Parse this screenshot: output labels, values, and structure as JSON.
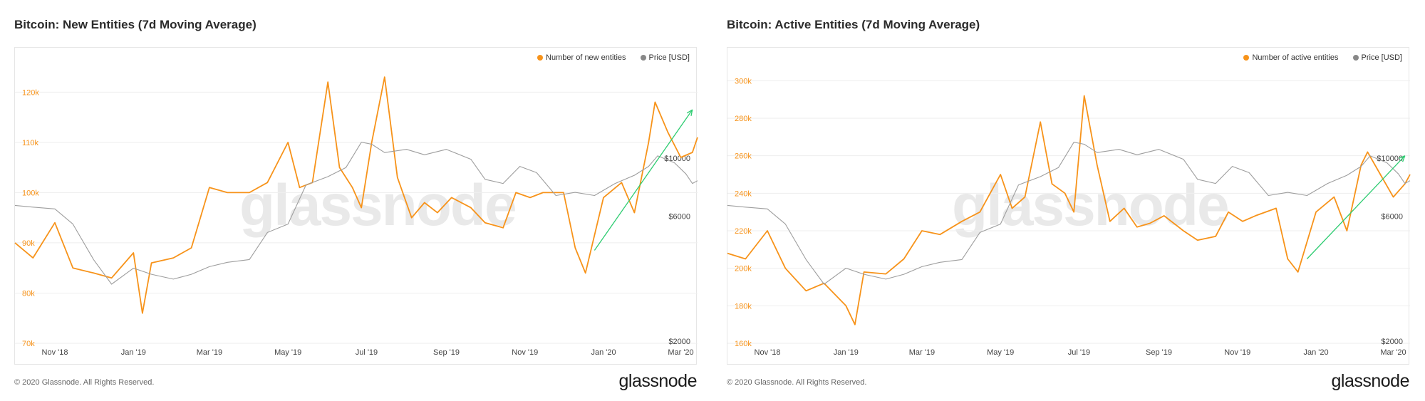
{
  "colors": {
    "entities": "#f7931a",
    "price": "#9e9e9e",
    "trend": "#2ecc71",
    "grid": "#eeeeee"
  },
  "footer": {
    "copyright": "© 2020 Glassnode. All Rights Reserved.",
    "logo": "glassnode",
    "watermark": "glassnode"
  },
  "chart_data": [
    {
      "type": "line",
      "title": "Bitcoin: New Entities (7d Moving Average)",
      "legend": [
        "Number of new entities",
        "Price [USD]"
      ],
      "legend_position": "top-right",
      "grid": true,
      "x_range": [
        "2018-10-01",
        "2020-03-14"
      ],
      "x_ticks": [
        "Nov '18",
        "Jan '19",
        "Mar '19",
        "May '19",
        "Jul '19",
        "Sep '19",
        "Nov '19",
        "Jan '20",
        "Mar '20"
      ],
      "y_left": {
        "ticks": [
          70000,
          80000,
          90000,
          100000,
          110000,
          120000
        ],
        "labels": [
          "70k",
          "80k",
          "90k",
          "100k",
          "110k",
          "120k"
        ],
        "range": [
          70000,
          126000
        ]
      },
      "y_right": {
        "labels": [
          "$2000",
          "$6000",
          "$10000"
        ],
        "scale": "log"
      },
      "series": [
        {
          "name": "Number of new entities",
          "axis": "left",
          "x": [
            "2018-10-01",
            "2018-10-15",
            "2018-11-01",
            "2018-11-15",
            "2018-12-01",
            "2018-12-15",
            "2019-01-01",
            "2019-01-08",
            "2019-01-15",
            "2019-02-01",
            "2019-02-15",
            "2019-03-01",
            "2019-03-15",
            "2019-04-01",
            "2019-04-15",
            "2019-05-01",
            "2019-05-10",
            "2019-05-20",
            "2019-06-01",
            "2019-06-10",
            "2019-06-20",
            "2019-06-27",
            "2019-07-05",
            "2019-07-15",
            "2019-07-25",
            "2019-08-05",
            "2019-08-15",
            "2019-08-25",
            "2019-09-05",
            "2019-09-20",
            "2019-10-01",
            "2019-10-15",
            "2019-10-25",
            "2019-11-05",
            "2019-11-15",
            "2019-12-01",
            "2019-12-10",
            "2019-12-18",
            "2020-01-01",
            "2020-01-15",
            "2020-01-25",
            "2020-02-05",
            "2020-02-10",
            "2020-02-20",
            "2020-03-01",
            "2020-03-10",
            "2020-03-14"
          ],
          "values": [
            90000,
            87000,
            94000,
            85000,
            84000,
            83000,
            88000,
            76000,
            86000,
            87000,
            89000,
            101000,
            100000,
            100000,
            102000,
            110000,
            101000,
            102000,
            122000,
            105000,
            101000,
            97000,
            110000,
            123000,
            103000,
            95000,
            98000,
            96000,
            99000,
            97000,
            94000,
            93000,
            100000,
            99000,
            100000,
            100000,
            89000,
            84000,
            99000,
            102000,
            96000,
            110000,
            118000,
            112000,
            107000,
            108000,
            111000
          ]
        },
        {
          "name": "Price [USD]",
          "axis": "right",
          "x": [
            "2018-10-01",
            "2018-10-15",
            "2018-11-01",
            "2018-11-15",
            "2018-12-01",
            "2018-12-15",
            "2019-01-01",
            "2019-01-15",
            "2019-02-01",
            "2019-02-15",
            "2019-03-01",
            "2019-03-15",
            "2019-04-01",
            "2019-04-15",
            "2019-05-01",
            "2019-05-15",
            "2019-06-01",
            "2019-06-15",
            "2019-06-27",
            "2019-07-05",
            "2019-07-15",
            "2019-08-01",
            "2019-08-15",
            "2019-09-01",
            "2019-09-20",
            "2019-10-01",
            "2019-10-15",
            "2019-10-28",
            "2019-11-10",
            "2019-11-25",
            "2019-12-10",
            "2019-12-25",
            "2020-01-10",
            "2020-01-25",
            "2020-02-05",
            "2020-02-12",
            "2020-02-25",
            "2020-03-05",
            "2020-03-10",
            "2020-03-14"
          ],
          "values": [
            6600,
            6500,
            6400,
            5600,
            4100,
            3300,
            3800,
            3600,
            3450,
            3600,
            3850,
            4000,
            4100,
            5200,
            5600,
            7900,
            8500,
            9200,
            11500,
            11300,
            10500,
            10800,
            10300,
            10800,
            9900,
            8300,
            8000,
            9300,
            8800,
            7200,
            7400,
            7200,
            8000,
            8600,
            9300,
            10200,
            9600,
            8700,
            8000,
            8200
          ]
        },
        {
          "name": "trend-arrow",
          "axis": "left",
          "x": [
            "2019-12-25",
            "2020-03-10"
          ],
          "values": [
            88500,
            116500
          ]
        }
      ]
    },
    {
      "type": "line",
      "title": "Bitcoin: Active Entities (7d Moving Average)",
      "legend": [
        "Number of active entities",
        "Price [USD]"
      ],
      "legend_position": "top-right",
      "grid": true,
      "x_range": [
        "2018-10-01",
        "2020-03-14"
      ],
      "x_ticks": [
        "Nov '18",
        "Jan '19",
        "Mar '19",
        "May '19",
        "Jul '19",
        "Sep '19",
        "Nov '19",
        "Jan '20",
        "Mar '20"
      ],
      "y_left": {
        "ticks": [
          160000,
          180000,
          200000,
          220000,
          240000,
          260000,
          280000,
          300000
        ],
        "labels": [
          "160k",
          "180k",
          "200k",
          "220k",
          "240k",
          "260k",
          "280k",
          "300k"
        ],
        "range": [
          160000,
          310000
        ]
      },
      "y_right": {
        "labels": [
          "$2000",
          "$6000",
          "$10000"
        ],
        "scale": "log"
      },
      "series": [
        {
          "name": "Number of active entities",
          "axis": "left",
          "x": [
            "2018-10-01",
            "2018-10-15",
            "2018-11-01",
            "2018-11-15",
            "2018-12-01",
            "2018-12-15",
            "2019-01-01",
            "2019-01-08",
            "2019-01-15",
            "2019-02-01",
            "2019-02-15",
            "2019-03-01",
            "2019-03-15",
            "2019-04-01",
            "2019-04-15",
            "2019-05-01",
            "2019-05-10",
            "2019-05-20",
            "2019-06-01",
            "2019-06-10",
            "2019-06-20",
            "2019-06-27",
            "2019-07-05",
            "2019-07-15",
            "2019-07-25",
            "2019-08-05",
            "2019-08-15",
            "2019-08-25",
            "2019-09-05",
            "2019-09-20",
            "2019-10-01",
            "2019-10-15",
            "2019-10-25",
            "2019-11-05",
            "2019-11-15",
            "2019-12-01",
            "2019-12-10",
            "2019-12-18",
            "2020-01-01",
            "2020-01-15",
            "2020-01-25",
            "2020-02-05",
            "2020-02-10",
            "2020-02-20",
            "2020-03-01",
            "2020-03-10",
            "2020-03-14"
          ],
          "values": [
            208000,
            205000,
            220000,
            200000,
            188000,
            192000,
            180000,
            170000,
            198000,
            197000,
            205000,
            220000,
            218000,
            225000,
            230000,
            250000,
            232000,
            238000,
            278000,
            245000,
            240000,
            230000,
            292000,
            255000,
            225000,
            232000,
            222000,
            224000,
            228000,
            220000,
            215000,
            217000,
            230000,
            225000,
            228000,
            232000,
            205000,
            198000,
            230000,
            238000,
            220000,
            255000,
            262000,
            250000,
            238000,
            245000,
            250000
          ]
        },
        {
          "name": "Price [USD]",
          "axis": "right",
          "x": [
            "2018-10-01",
            "2018-10-15",
            "2018-11-01",
            "2018-11-15",
            "2018-12-01",
            "2018-12-15",
            "2019-01-01",
            "2019-01-15",
            "2019-02-01",
            "2019-02-15",
            "2019-03-01",
            "2019-03-15",
            "2019-04-01",
            "2019-04-15",
            "2019-05-01",
            "2019-05-15",
            "2019-06-01",
            "2019-06-15",
            "2019-06-27",
            "2019-07-05",
            "2019-07-15",
            "2019-08-01",
            "2019-08-15",
            "2019-09-01",
            "2019-09-20",
            "2019-10-01",
            "2019-10-15",
            "2019-10-28",
            "2019-11-10",
            "2019-11-25",
            "2019-12-10",
            "2019-12-25",
            "2020-01-10",
            "2020-01-25",
            "2020-02-05",
            "2020-02-12",
            "2020-02-25",
            "2020-03-05",
            "2020-03-10",
            "2020-03-14"
          ],
          "values": [
            6600,
            6500,
            6400,
            5600,
            4100,
            3300,
            3800,
            3600,
            3450,
            3600,
            3850,
            4000,
            4100,
            5200,
            5600,
            7900,
            8500,
            9200,
            11500,
            11300,
            10500,
            10800,
            10300,
            10800,
            9900,
            8300,
            8000,
            9300,
            8800,
            7200,
            7400,
            7200,
            8000,
            8600,
            9300,
            10200,
            9600,
            8700,
            8000,
            8200
          ]
        },
        {
          "name": "trend-arrow",
          "axis": "left",
          "x": [
            "2019-12-25",
            "2020-03-10"
          ],
          "values": [
            205000,
            260000
          ]
        }
      ]
    }
  ]
}
